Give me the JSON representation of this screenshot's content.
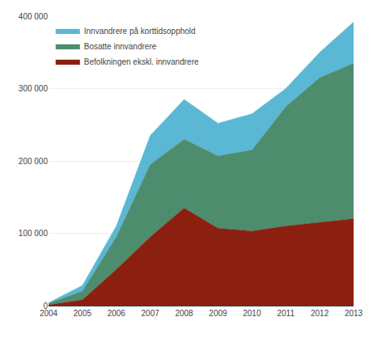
{
  "chart_data": {
    "type": "area",
    "stacked": true,
    "x": [
      2004,
      2005,
      2006,
      2007,
      2008,
      2009,
      2010,
      2011,
      2012,
      2013
    ],
    "series": [
      {
        "name": "Befolkningen ekskl. innvandrere",
        "color": "#8b2010",
        "values": [
          1000,
          8000,
          50000,
          95000,
          135000,
          107000,
          103000,
          110000,
          115000,
          120000
        ]
      },
      {
        "name": "Bosatte innvandrere",
        "color": "#4e8c6e",
        "values": [
          2000,
          12000,
          45000,
          100000,
          95000,
          100000,
          112000,
          165000,
          200000,
          215000
        ]
      },
      {
        "name": "Innvandrere på korttidsopphold",
        "color": "#5bb8d4",
        "values": [
          1000,
          8000,
          15000,
          40000,
          55000,
          45000,
          50000,
          25000,
          35000,
          57000
        ]
      }
    ],
    "xlim": [
      2004,
      2013
    ],
    "xticks": [
      2004,
      2005,
      2006,
      2007,
      2008,
      2009,
      2010,
      2011,
      2012,
      2013
    ],
    "ylim": [
      0,
      400000
    ],
    "yticks": [
      0,
      {
        "value": 100000,
        "label": "100 000"
      },
      {
        "value": 200000,
        "label": "200 000"
      },
      {
        "value": 300000,
        "label": "300 000"
      },
      {
        "value": 400000,
        "label": "400 000"
      }
    ],
    "grid": true,
    "legend": "upper left"
  }
}
